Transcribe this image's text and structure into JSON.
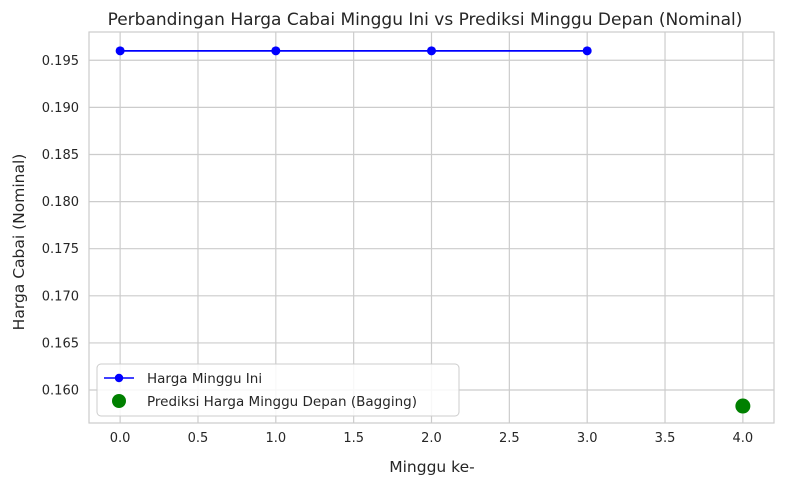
{
  "chart_data": {
    "type": "line",
    "title": "Perbandingan Harga Cabai Minggu Ini vs Prediksi Minggu Depan (Nominal)",
    "xlabel": "Minggu ke-",
    "ylabel": "Harga Cabai (Nominal)",
    "xlim": [
      -0.2,
      4.2
    ],
    "ylim": [
      0.1565,
      0.198
    ],
    "x_ticks": [
      0.0,
      0.5,
      1.0,
      1.5,
      2.0,
      2.5,
      3.0,
      3.5,
      4.0
    ],
    "x_tick_labels": [
      "0.0",
      "0.5",
      "1.0",
      "1.5",
      "2.0",
      "2.5",
      "3.0",
      "3.5",
      "4.0"
    ],
    "y_ticks": [
      0.16,
      0.165,
      0.17,
      0.175,
      0.18,
      0.185,
      0.19,
      0.195
    ],
    "y_tick_labels": [
      "0.160",
      "0.165",
      "0.170",
      "0.175",
      "0.180",
      "0.185",
      "0.190",
      "0.195"
    ],
    "grid": true,
    "legend_position": "lower-left",
    "series": [
      {
        "name": "Harga Minggu Ini",
        "kind": "line",
        "marker": "circle",
        "color": "#0000ff",
        "x": [
          0,
          1,
          2,
          3
        ],
        "y": [
          0.196,
          0.196,
          0.196,
          0.196
        ]
      },
      {
        "name": "Prediksi Harga Minggu Depan (Bagging)",
        "kind": "scatter",
        "marker": "circle",
        "color": "#008000",
        "x": [
          4
        ],
        "y": [
          0.1583
        ]
      }
    ]
  }
}
